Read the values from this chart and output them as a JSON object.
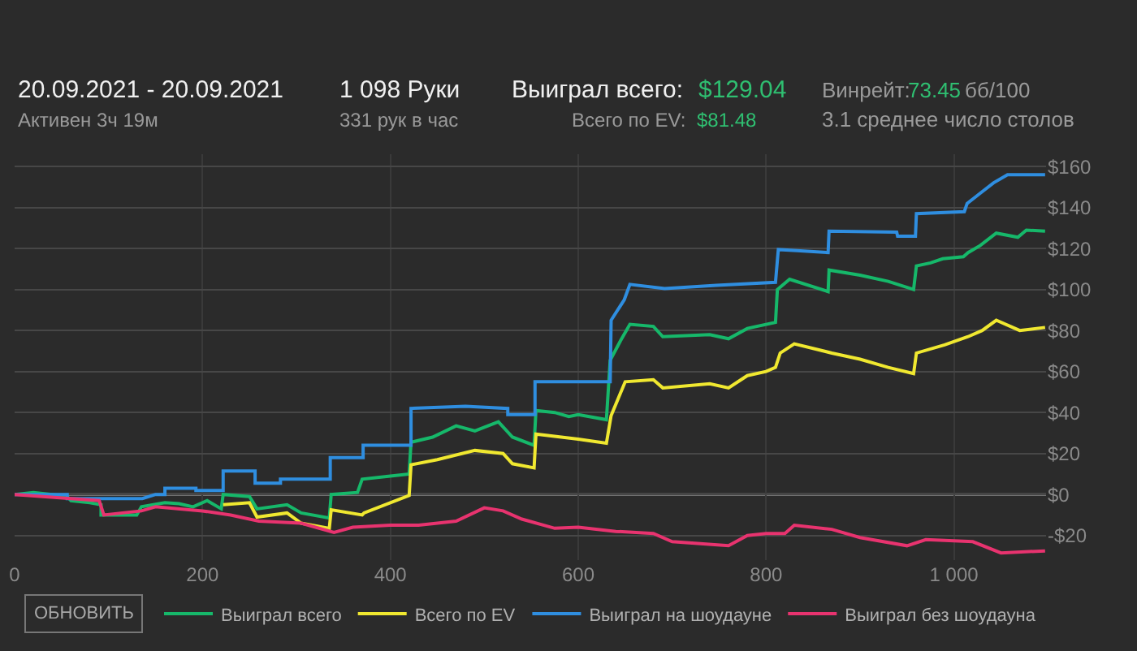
{
  "chart_data": {
    "type": "line",
    "title": "20.09.2021 - 20.09.2021",
    "subtitle": "Активен 3ч 19м",
    "annotations": [
      "1 098 Руки",
      "331 рук в час",
      "Выиграл всего:",
      "$129.04",
      "Всего по EV:",
      "$81.48",
      "Винрейт:",
      "73.45",
      "бб/100",
      "3.1 среднее число столов",
      "ОБНОВИТЬ"
    ],
    "xlim": [
      0,
      1098
    ],
    "xticks": [
      0,
      200,
      400,
      600,
      800,
      {
        "value": 1000,
        "label": "1 000"
      }
    ],
    "ylim": [
      -32,
      166
    ],
    "yticks": [
      {
        "value": -20,
        "label": "-$20"
      },
      {
        "value": 0,
        "label": "$0"
      },
      {
        "value": 20,
        "label": "$20"
      },
      {
        "value": 40,
        "label": "$40"
      },
      {
        "value": 60,
        "label": "$60"
      },
      {
        "value": 80,
        "label": "$80"
      },
      {
        "value": 100,
        "label": "$100"
      },
      {
        "value": 120,
        "label": "$120"
      },
      {
        "value": 140,
        "label": "$140"
      },
      {
        "value": 160,
        "label": "$160"
      }
    ],
    "grid": true,
    "legend": "bottom",
    "marker": "none",
    "line_style": "solid",
    "ref_lines": [
      {
        "axis": "y",
        "value": 0,
        "color": "#8a8a8a"
      }
    ],
    "series": [
      {
        "name": "Выиграл всего",
        "color": "#16b86a",
        "x": [
          0,
          20,
          40,
          56,
          60,
          80,
          92,
          92,
          130,
          135,
          160,
          175,
          190,
          205,
          220,
          222,
          250,
          258,
          290,
          305,
          335,
          337,
          365,
          370,
          400,
          420,
          422,
          445,
          470,
          490,
          515,
          530,
          553,
          555,
          575,
          590,
          600,
          630,
          634,
          645,
          655,
          680,
          690,
          740,
          760,
          780,
          810,
          812,
          825,
          866,
          867,
          900,
          930,
          957,
          960,
          975,
          988,
          1010,
          1015,
          1028,
          1045,
          1068,
          1077,
          1097
        ],
        "values": [
          0,
          1,
          0,
          -1,
          -3,
          -4,
          -5,
          -10,
          -10,
          -6,
          -4,
          -4.5,
          -6,
          -3,
          -7,
          0,
          -1,
          -7,
          -5,
          -9,
          -11.5,
          0,
          1,
          7.5,
          9,
          10,
          25.5,
          28,
          33.5,
          31,
          35.5,
          28,
          24,
          41,
          40,
          38,
          39,
          36.5,
          65.5,
          75,
          83,
          82,
          77,
          78,
          76,
          81,
          84,
          100,
          105,
          99,
          109.5,
          107,
          104,
          100,
          111.5,
          113,
          115,
          116,
          118,
          121.5,
          127.5,
          125.5,
          129,
          128.5
        ]
      },
      {
        "name": "Всего по EV",
        "color": "#f0e830",
        "x": [
          222,
          250,
          258,
          290,
          305,
          335,
          337,
          370,
          372,
          420,
          422,
          450,
          490,
          520,
          530,
          553,
          555,
          600,
          630,
          635,
          650,
          680,
          690,
          740,
          760,
          780,
          800,
          810,
          815,
          830,
          870,
          900,
          930,
          957,
          960,
          990,
          1015,
          1030,
          1045,
          1070,
          1097
        ],
        "values": [
          -5,
          -4,
          -11,
          -9,
          -14,
          -16.5,
          -7.5,
          -10,
          -9,
          -0.5,
          14.5,
          17,
          21.5,
          20,
          15,
          13,
          29.5,
          27,
          25,
          38.5,
          55,
          56,
          52,
          54,
          52,
          58,
          60,
          62,
          69,
          73.5,
          69,
          66,
          62,
          59,
          69,
          73,
          77,
          80,
          85,
          80,
          81.5
        ]
      },
      {
        "name": "Выиграл на шоудауне",
        "color": "#2f8ee0",
        "x": [
          0,
          56,
          56,
          136,
          150,
          160,
          160,
          193,
          193,
          222,
          222,
          256,
          256,
          283,
          283,
          336,
          336,
          371,
          371,
          422,
          422,
          480,
          525,
          525,
          554,
          554,
          634,
          635,
          649,
          655,
          692,
          747,
          810,
          813,
          833,
          866,
          867,
          939,
          940,
          959,
          960,
          1011,
          1014,
          1028,
          1042,
          1057,
          1097
        ],
        "values": [
          0,
          0,
          -2,
          -2,
          0,
          0,
          3,
          3,
          2,
          2,
          11.5,
          11.5,
          5.5,
          5.5,
          7.5,
          7.5,
          18,
          18,
          24,
          24,
          42,
          43,
          42,
          39,
          39,
          55,
          55,
          85,
          95,
          102.5,
          100.5,
          102,
          103.5,
          119.5,
          119,
          118,
          128.5,
          128,
          126,
          126,
          137,
          138,
          142,
          147,
          152,
          156,
          156
        ]
      },
      {
        "name": "Выиграл без шоудауна",
        "color": "#e8336f",
        "x": [
          0,
          30,
          60,
          90,
          95,
          135,
          150,
          200,
          230,
          260,
          305,
          340,
          360,
          400,
          430,
          470,
          500,
          520,
          540,
          575,
          600,
          640,
          680,
          700,
          760,
          780,
          800,
          820,
          830,
          870,
          900,
          950,
          970,
          1020,
          1050,
          1097
        ],
        "values": [
          0,
          -1,
          -2,
          -3,
          -10,
          -8,
          -6,
          -8,
          -10,
          -13,
          -14,
          -18.5,
          -16,
          -15,
          -15,
          -13,
          -6.5,
          -8,
          -12,
          -16.5,
          -16,
          -18,
          -19,
          -23,
          -25,
          -20,
          -19,
          -19,
          -15,
          -17,
          -21,
          -25,
          -22,
          -23,
          -28.5,
          -27.5
        ]
      }
    ]
  }
}
